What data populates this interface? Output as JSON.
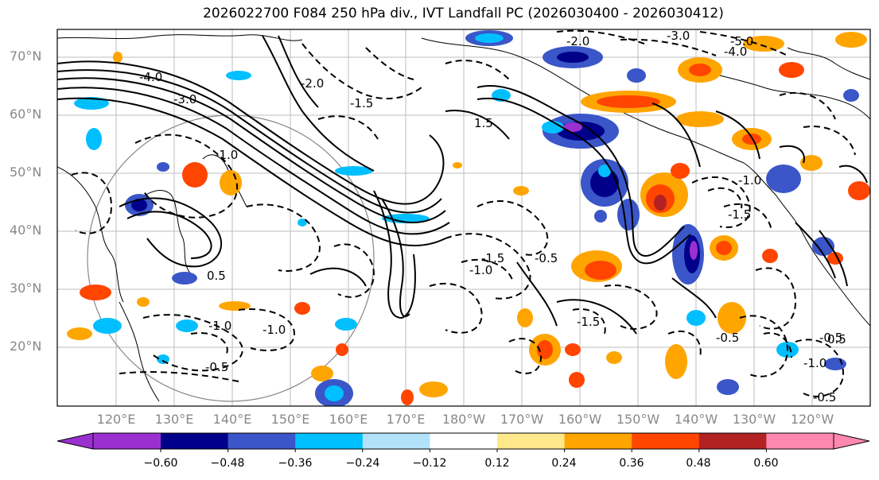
{
  "title": "2026022700 F084 250 hPa div., IVT Landfall PC (2026030400 - 2026030412)",
  "lat_labels": [
    "70°N",
    "60°N",
    "50°N",
    "40°N",
    "30°N",
    "20°N"
  ],
  "lon_labels": [
    "120°E",
    "130°E",
    "140°E",
    "150°E",
    "160°E",
    "170°E",
    "180°W",
    "170°W",
    "160°W",
    "150°W",
    "140°W",
    "130°W",
    "120°W"
  ],
  "colorbar": {
    "colors": [
      "#9b30d0",
      "#00008b",
      "#3a56c8",
      "#00bfff",
      "#b2e2fa",
      "#ffffff",
      "#ffe88a",
      "#ffa500",
      "#ff4500",
      "#b22222",
      "#ff88b0"
    ],
    "tick_labels": [
      "−0.60",
      "−0.48",
      "−0.36",
      "−0.24",
      "−0.12",
      "0.12",
      "0.24",
      "0.36",
      "0.48",
      "0.60"
    ]
  },
  "contour_labels": [
    {
      "text": "-4.0"
    },
    {
      "text": "-3.0"
    },
    {
      "text": "-2.0"
    },
    {
      "text": "-1.5"
    },
    {
      "text": "-1.0"
    },
    {
      "text": "-0.5"
    },
    {
      "text": "0.5"
    },
    {
      "text": "-1.0"
    },
    {
      "text": "1.5"
    },
    {
      "text": "-1.0"
    },
    {
      "text": "-0.5"
    },
    {
      "text": "-1.5"
    },
    {
      "text": "-1.5"
    },
    {
      "text": "-1.0"
    },
    {
      "text": "-0.5"
    },
    {
      "text": "-1.5"
    },
    {
      "text": "-1.0"
    },
    {
      "text": "-0.5"
    },
    {
      "text": "-3.0"
    },
    {
      "text": "-2.0"
    },
    {
      "text": "-5.0"
    },
    {
      "text": "-4.0"
    },
    {
      "text": "-1.0"
    },
    {
      "text": "-0.5"
    },
    {
      "text": "0.5"
    }
  ]
}
